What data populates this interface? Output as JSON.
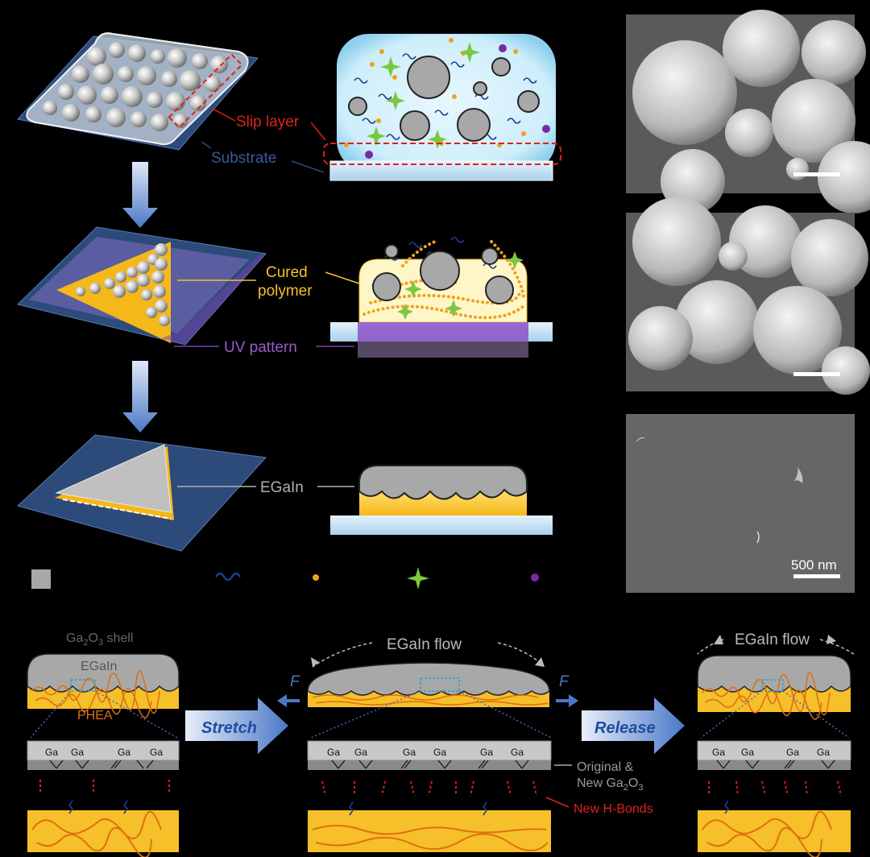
{
  "labels": {
    "slip_layer": "Slip layer",
    "substrate": "Substrate",
    "cured_polymer_1": "Cured",
    "cured_polymer_2": "polymer",
    "uv_pattern": "UV pattern",
    "egain": "EGaIn",
    "scale_bar": "500 nm"
  },
  "bottom": {
    "shell_prefix": "Ga",
    "shell_sub1": "2",
    "shell_mid": "O",
    "shell_sub2": "3",
    "shell_suffix": " shell",
    "egain": "EGaIn",
    "phea": "PHEA",
    "stretch": "Stretch",
    "release": "Release",
    "egain_flow": "EGaIn flow",
    "force": "F",
    "ga": "Ga",
    "original_line1": "Original &",
    "original_line2_prefix": "New Ga",
    "original_sub1": "2",
    "original_mid": "O",
    "original_sub2": "3",
    "new_hbonds": "New H-Bonds"
  },
  "colors": {
    "arrow_blue": "#4a78c8",
    "polymer_yellow": "#f5c02a",
    "polymer_orange": "#e07010",
    "egain_grey": "#a8a8a8",
    "slip_red": "#e0201c",
    "uv_purple": "#7a3fb0",
    "substrate_blue": "#2c4a7a",
    "legend_ligand": "#1f3f8a",
    "legend_orange": "#f0a020",
    "legend_green": "#7ac840",
    "legend_purple": "#7a28a8"
  }
}
